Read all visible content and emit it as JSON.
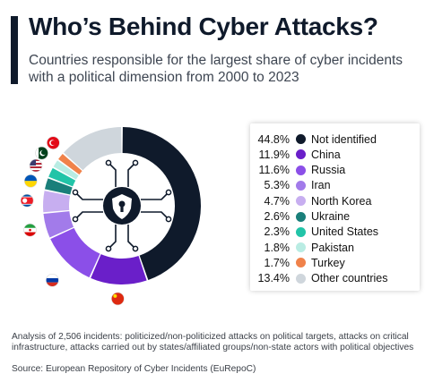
{
  "header": {
    "title": "Who’s Behind Cyber Attacks?",
    "subtitle": "Countries responsible for the largest share of cyber incidents with a political dimension from 2000 to 2023"
  },
  "chart_data": {
    "type": "pie",
    "donut": true,
    "title": "Who’s Behind Cyber Attacks?",
    "subtitle": "Countries responsible for the largest share of cyber incidents with a political dimension from 2000 to 2023",
    "unit": "%",
    "legend_position": "right",
    "center_icon": "shield-lock-icon",
    "slices": [
      {
        "label": "Not identified",
        "value": 44.8,
        "display": "44.8%",
        "color": "#0f1a2b",
        "flag": null
      },
      {
        "label": "China",
        "value": 11.9,
        "display": "11.9%",
        "color": "#6a1fc9",
        "flag": "china-flag-icon"
      },
      {
        "label": "Russia",
        "value": 11.6,
        "display": "11.6%",
        "color": "#8b4fe8",
        "flag": "russia-flag-icon"
      },
      {
        "label": "Iran",
        "value": 5.3,
        "display": "5.3%",
        "color": "#a27bea",
        "flag": "iran-flag-icon"
      },
      {
        "label": "North Korea",
        "value": 4.7,
        "display": "4.7%",
        "color": "#c7aef0",
        "flag": "north-korea-flag-icon"
      },
      {
        "label": "Ukraine",
        "value": 2.6,
        "display": "2.6%",
        "color": "#1a7f7a",
        "flag": "ukraine-flag-icon"
      },
      {
        "label": "United States",
        "value": 2.3,
        "display": "2.3%",
        "color": "#22c4a8",
        "flag": "united-states-flag-icon"
      },
      {
        "label": "Pakistan",
        "value": 1.8,
        "display": "1.8%",
        "color": "#b9ece3",
        "flag": "pakistan-flag-icon"
      },
      {
        "label": "Turkey",
        "value": 1.7,
        "display": "1.7%",
        "color": "#f0824a",
        "flag": "turkey-flag-icon"
      },
      {
        "label": "Other countries",
        "value": 13.4,
        "display": "13.4%",
        "color": "#cfd6dc",
        "flag": null
      }
    ]
  },
  "footer": {
    "note": "Analysis of 2,506 incidents: politicized/non-politicized attacks on political targets, attacks on critical infrastructure, attacks carried out by states/affiliated groups/non-state actors with political objectives",
    "source": "Source: European Repository of Cyber Incidents (EuRepoC)"
  }
}
